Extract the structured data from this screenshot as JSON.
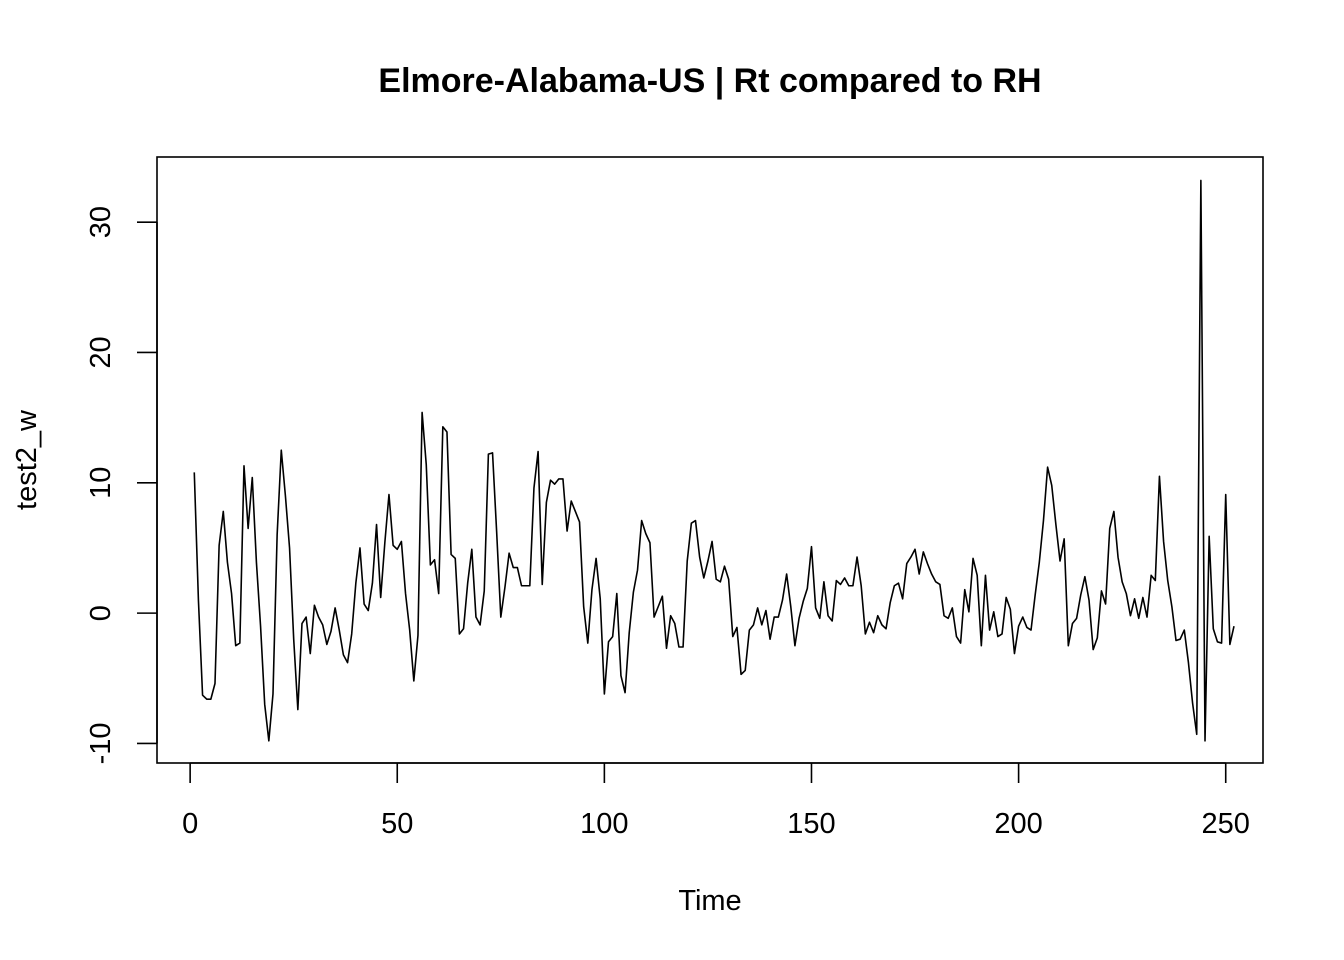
{
  "chart_data": {
    "type": "line",
    "title": "Elmore-Alabama-US | Rt compared to RH",
    "xlabel": "Time",
    "ylabel": "test2_w",
    "xlim": [
      -8,
      259
    ],
    "ylim": [
      -11.5,
      35
    ],
    "x_ticks": [
      0,
      50,
      100,
      150,
      200,
      250
    ],
    "y_ticks": [
      -10,
      0,
      10,
      20,
      30
    ],
    "grid": false,
    "line_color": "#000000",
    "series": [
      {
        "values": [
          10.8,
          1.0,
          -6.3,
          -6.6,
          -6.6,
          -5.4,
          5.2,
          7.8,
          3.9,
          1.5,
          -2.5,
          -2.3,
          11.3,
          6.5,
          10.4,
          3.9,
          -1.0,
          -7.0,
          -9.8,
          -6.2,
          6.0,
          12.5,
          9.0,
          5.0,
          -2.0,
          -7.4,
          -0.8,
          -0.3,
          -3.1,
          0.6,
          -0.3,
          -0.9,
          -2.4,
          -1.4,
          0.4,
          -1.3,
          -3.2,
          -3.8,
          -1.6,
          2.3,
          5.0,
          0.7,
          0.2,
          2.3,
          6.8,
          1.2,
          5.4,
          9.1,
          5.2,
          4.9,
          5.5,
          1.5,
          -1.3,
          -5.2,
          -1.7,
          15.4,
          11.4,
          3.7,
          4.1,
          1.5,
          14.3,
          13.9,
          4.5,
          4.2,
          -1.6,
          -1.2,
          2.3,
          4.9,
          -0.3,
          -0.9,
          1.7,
          12.2,
          12.3,
          6.2,
          -0.3,
          2.0,
          4.6,
          3.5,
          3.5,
          2.1,
          2.1,
          2.1,
          9.6,
          12.4,
          2.2,
          8.5,
          10.2,
          9.9,
          10.3,
          10.3,
          6.3,
          8.6,
          7.8,
          7.0,
          0.5,
          -2.3,
          1.8,
          4.2,
          1.1,
          -6.2,
          -2.2,
          -1.8,
          1.5,
          -4.8,
          -6.1,
          -1.5,
          1.6,
          3.3,
          7.1,
          6.1,
          5.4,
          -0.3,
          0.5,
          1.3,
          -2.7,
          -0.2,
          -0.8,
          -2.6,
          -2.6,
          4.0,
          6.9,
          7.1,
          4.3,
          2.7,
          4.0,
          5.5,
          2.6,
          2.4,
          3.6,
          2.6,
          -1.8,
          -1.1,
          -4.7,
          -4.4,
          -1.3,
          -0.9,
          0.4,
          -0.9,
          0.2,
          -2.0,
          -0.3,
          -0.3,
          1.0,
          3.0,
          0.5,
          -2.5,
          -0.4,
          0.9,
          1.9,
          5.1,
          0.4,
          -0.4,
          2.4,
          -0.2,
          -0.6,
          2.5,
          2.2,
          2.7,
          2.1,
          2.1,
          4.3,
          2.1,
          -1.6,
          -0.7,
          -1.5,
          -0.2,
          -0.9,
          -1.2,
          0.8,
          2.1,
          2.3,
          1.1,
          3.8,
          4.3,
          4.9,
          3.0,
          4.7,
          3.8,
          3.0,
          2.4,
          2.2,
          -0.2,
          -0.4,
          0.4,
          -1.8,
          -2.3,
          1.8,
          0.1,
          4.2,
          2.9,
          -2.5,
          2.9,
          -1.3,
          0.1,
          -1.8,
          -1.6,
          1.2,
          0.3,
          -3.1,
          -1.0,
          -0.3,
          -1.1,
          -1.3,
          1.4,
          3.9,
          7.1,
          11.2,
          9.8,
          6.8,
          4.0,
          5.7,
          -2.5,
          -0.8,
          -0.4,
          1.4,
          2.8,
          1.0,
          -2.8,
          -1.9,
          1.7,
          0.7,
          6.5,
          7.8,
          4.3,
          2.4,
          1.5,
          -0.2,
          1.1,
          -0.4,
          1.2,
          -0.3,
          2.9,
          2.5,
          10.5,
          5.5,
          2.5,
          0.5,
          -2.1,
          -2.0,
          -1.3,
          -3.8,
          -6.9,
          -9.3,
          33.2,
          -9.8,
          5.9,
          -1.2,
          -2.2,
          -2.3,
          9.1,
          -2.4,
          -1.0
        ]
      }
    ]
  }
}
